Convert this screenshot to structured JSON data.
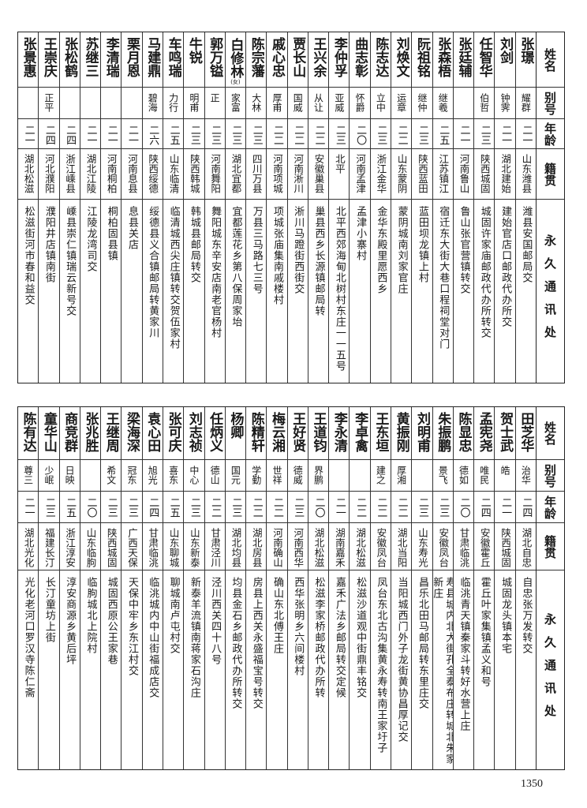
{
  "headers": {
    "name": "姓名",
    "alias": "别号",
    "age": "年龄",
    "native": "籍贯",
    "address": "永久通讯处"
  },
  "table1": [
    {
      "name": "张璟",
      "alias": "耀群",
      "age": "二一",
      "native": "山东潍县",
      "address": "潍县安国邮局交"
    },
    {
      "name": "刘剑",
      "alias": "钟霁",
      "age": "二一",
      "native": "湖北建始",
      "address": "建始官店口邮政代办所交"
    },
    {
      "name": "任智华",
      "alias": "伯哲",
      "age": "二三",
      "native": "陕西城固",
      "address": "城固许家庙邮政代办所转交"
    },
    {
      "name": "张廷辅",
      "alias": "",
      "age": "二一",
      "native": "河南鲁山",
      "address": "鲁山张官营镇转交"
    },
    {
      "name": "张森梧",
      "alias": "继羲",
      "age": "二五",
      "native": "江苏镇江",
      "address": "宿迁东大街大巷口程祠堂对门"
    },
    {
      "name": "阮祖铭",
      "alias": "继仲",
      "age": "二三",
      "native": "陕西蓝田",
      "address": "蓝田坝龙镇上村"
    },
    {
      "name": "刘焕文",
      "alias": "运章",
      "age": "二二",
      "native": "山东蒙阴",
      "address": "蒙阴城南刘家官庄"
    },
    {
      "name": "陈志达",
      "alias": "立中",
      "age": "二三",
      "native": "浙江金华",
      "address": "金华东殿里愿西乡"
    },
    {
      "name": "曲志彰",
      "alias": "怀爵",
      "age": "二〇",
      "native": "河南孟津",
      "address": "孟津小寨村"
    },
    {
      "name": "李仲孚",
      "alias": "亚威",
      "age": "二三",
      "native": "北平",
      "address": "北平西郊海甸北树村东庄一一五号"
    },
    {
      "name": "王兴余",
      "alias": "从让",
      "age": "二二",
      "native": "安徽巢县",
      "address": "巢县西乡长源镇邮局转"
    },
    {
      "name": "贾长山",
      "alias": "国威",
      "age": "二二",
      "native": "河南淅川",
      "address": "淅川马蹬街西街交"
    },
    {
      "name": "戚心忠",
      "alias": "厚甫",
      "age": "二二",
      "native": "河南项城",
      "address": "项城张庙集南戚楼村"
    },
    {
      "name": "陈宗藩",
      "alias": "大林",
      "age": "二三",
      "native": "四川万县",
      "address": "万县三马路七三号"
    },
    {
      "name": "白修林",
      "note": "(女)",
      "alias": "家富",
      "age": "二三",
      "native": "湖北宜都",
      "address": "宜都莲花乡第八保周家坮"
    },
    {
      "name": "郭万镒",
      "alias": "正",
      "age": "二三",
      "native": "河南舞阳",
      "address": "舞阳城东辛安店南老官杨村"
    },
    {
      "name": "牛锐",
      "alias": "明甫",
      "age": "二三",
      "native": "陕西韩城",
      "address": "韩城县邮局转交"
    },
    {
      "name": "车鸣瑞",
      "alias": "力行",
      "age": "二五",
      "native": "山东临清",
      "address": "临清城西尖庄镇转交贺伍家村"
    },
    {
      "name": "马建鼎",
      "alias": "碧海",
      "age": "二六",
      "native": "陕西绥德",
      "address": "绥德县义合镇邮局转黄家川"
    },
    {
      "name": "栗月恩",
      "alias": "",
      "age": "二一",
      "native": "河南息县",
      "address": "息县关店"
    },
    {
      "name": "李清瑞",
      "alias": "",
      "age": "二一",
      "native": "河南桐柏",
      "address": "桐柏固县镇"
    },
    {
      "name": "苏继三",
      "alias": "",
      "age": "二一",
      "native": "湖北江陵",
      "address": "江陵龙湾司交"
    },
    {
      "name": "张松鹤",
      "alias": "",
      "age": "二四",
      "native": "浙江嵊县",
      "address": "嵊县崇仁镇瑞云新号交"
    },
    {
      "name": "王崇庆",
      "alias": "正平",
      "age": "二四",
      "native": "河北濮阳",
      "address": "濮阳井店镇南街"
    },
    {
      "name": "张景惠",
      "alias": "",
      "age": "二一",
      "native": "湖北松滋",
      "address": "松滋街河市春和益交"
    }
  ],
  "table2": [
    {
      "name": "田芝华",
      "alias": "治华",
      "age": "二四",
      "native": "湖北自忠",
      "address": "自忠张万发转交"
    },
    {
      "name": "贺士武",
      "alias": "皓",
      "age": "二一",
      "native": "陕西城固",
      "address": "城固龙头镇本宅"
    },
    {
      "name": "孟宪尧",
      "alias": "唯民",
      "age": "二四",
      "native": "安徽霍丘",
      "address": "霍丘叶家集镇孟义和号"
    },
    {
      "name": "陈显忠",
      "alias": "德如",
      "age": "二〇",
      "native": "甘肃临洮",
      "address": "临洮青天镇秦家斗转好水营上庄"
    },
    {
      "name": "朱振鹏",
      "alias": "景飞",
      "age": "二三",
      "native": "安徽凤台",
      "address": "寿县城内北大街孔全泰布庄转城北朱家新庄"
    },
    {
      "name": "刘明甫",
      "alias": "",
      "age": "二三",
      "native": "山东寿光",
      "address": "昌乐北田马邮局转东里庄交"
    },
    {
      "name": "黄振刚",
      "alias": "厚湘",
      "age": "二二",
      "native": "湖北当阳",
      "address": "当阳城西门外子龙街黄协昌厚记交"
    },
    {
      "name": "王东垣",
      "alias": "建之",
      "age": "二二",
      "native": "安徽凤台",
      "address": "凤台东北古沟集黄永寿转南王家圩子"
    },
    {
      "name": "李卓禽",
      "alias": "",
      "age": "二二",
      "native": "湖北松滋",
      "address": "松滋沙道观中街鼎丰铭交"
    },
    {
      "name": "李永清",
      "alias": "",
      "age": "二一",
      "native": "湖南嘉禾",
      "address": "嘉禾广法乡邮局转交定候"
    },
    {
      "name": "王道钧",
      "alias": "界鹏",
      "age": "二〇",
      "native": "湖北松滋",
      "address": "松滋李家桥邮政代办所转"
    },
    {
      "name": "王好贤",
      "alias": "德威",
      "age": "二三",
      "native": "河南西华",
      "address": "西华张明乡六间楼村"
    },
    {
      "name": "梅云湘",
      "alias": "世祥",
      "age": "二二",
      "native": "河南确山",
      "address": "确山东北傅王庄"
    },
    {
      "name": "陈精轩",
      "alias": "学勤",
      "age": "二二",
      "native": "湖北房县",
      "address": "房县上西关永盛福宝号转交"
    },
    {
      "name": "杨卿",
      "alias": "国元",
      "age": "二三",
      "native": "湖北均县",
      "address": "均县金石乡邮政代办所转交"
    },
    {
      "name": "任炳义",
      "alias": "德山",
      "age": "二二",
      "native": "甘肃泾川",
      "address": "泾川西关四十八号"
    },
    {
      "name": "刘志祯",
      "alias": "中心",
      "age": "二三",
      "native": "山东新泰",
      "address": "新泰羊流镇南蒋家石沟庄"
    },
    {
      "name": "张可庆",
      "alias": "喜东",
      "age": "二五",
      "native": "山东聊城",
      "address": "聊城南卢屯村交"
    },
    {
      "name": "袁心田",
      "alias": "旭光",
      "age": "二四",
      "native": "甘肃临洮",
      "address": "临洮城内中山街福成店交"
    },
    {
      "name": "梁海深",
      "alias": "冠东",
      "age": "二三",
      "native": "广西天保",
      "address": "天保中牢乡东江村交"
    },
    {
      "name": "王继周",
      "alias": "希文",
      "age": "二三",
      "native": "陕西城固",
      "address": "城固西原公王家巷"
    },
    {
      "name": "张兆胜",
      "alias": "",
      "age": "二〇",
      "native": "山东临朐",
      "address": "临朐城北上院村"
    },
    {
      "name": "商竞群",
      "alias": "日映",
      "age": "二五",
      "native": "浙江淳安",
      "address": "淳安商源乡黄后坪"
    },
    {
      "name": "童华山",
      "alias": "少岷",
      "age": "二三",
      "native": "福建长汀",
      "address": "长汀童坊上街"
    },
    {
      "name": "陈有达",
      "alias": "尊三",
      "age": "二一",
      "native": "湖北光化",
      "address": "光化老河口罗汉寺陈仁斋"
    }
  ],
  "page_number": "1350"
}
